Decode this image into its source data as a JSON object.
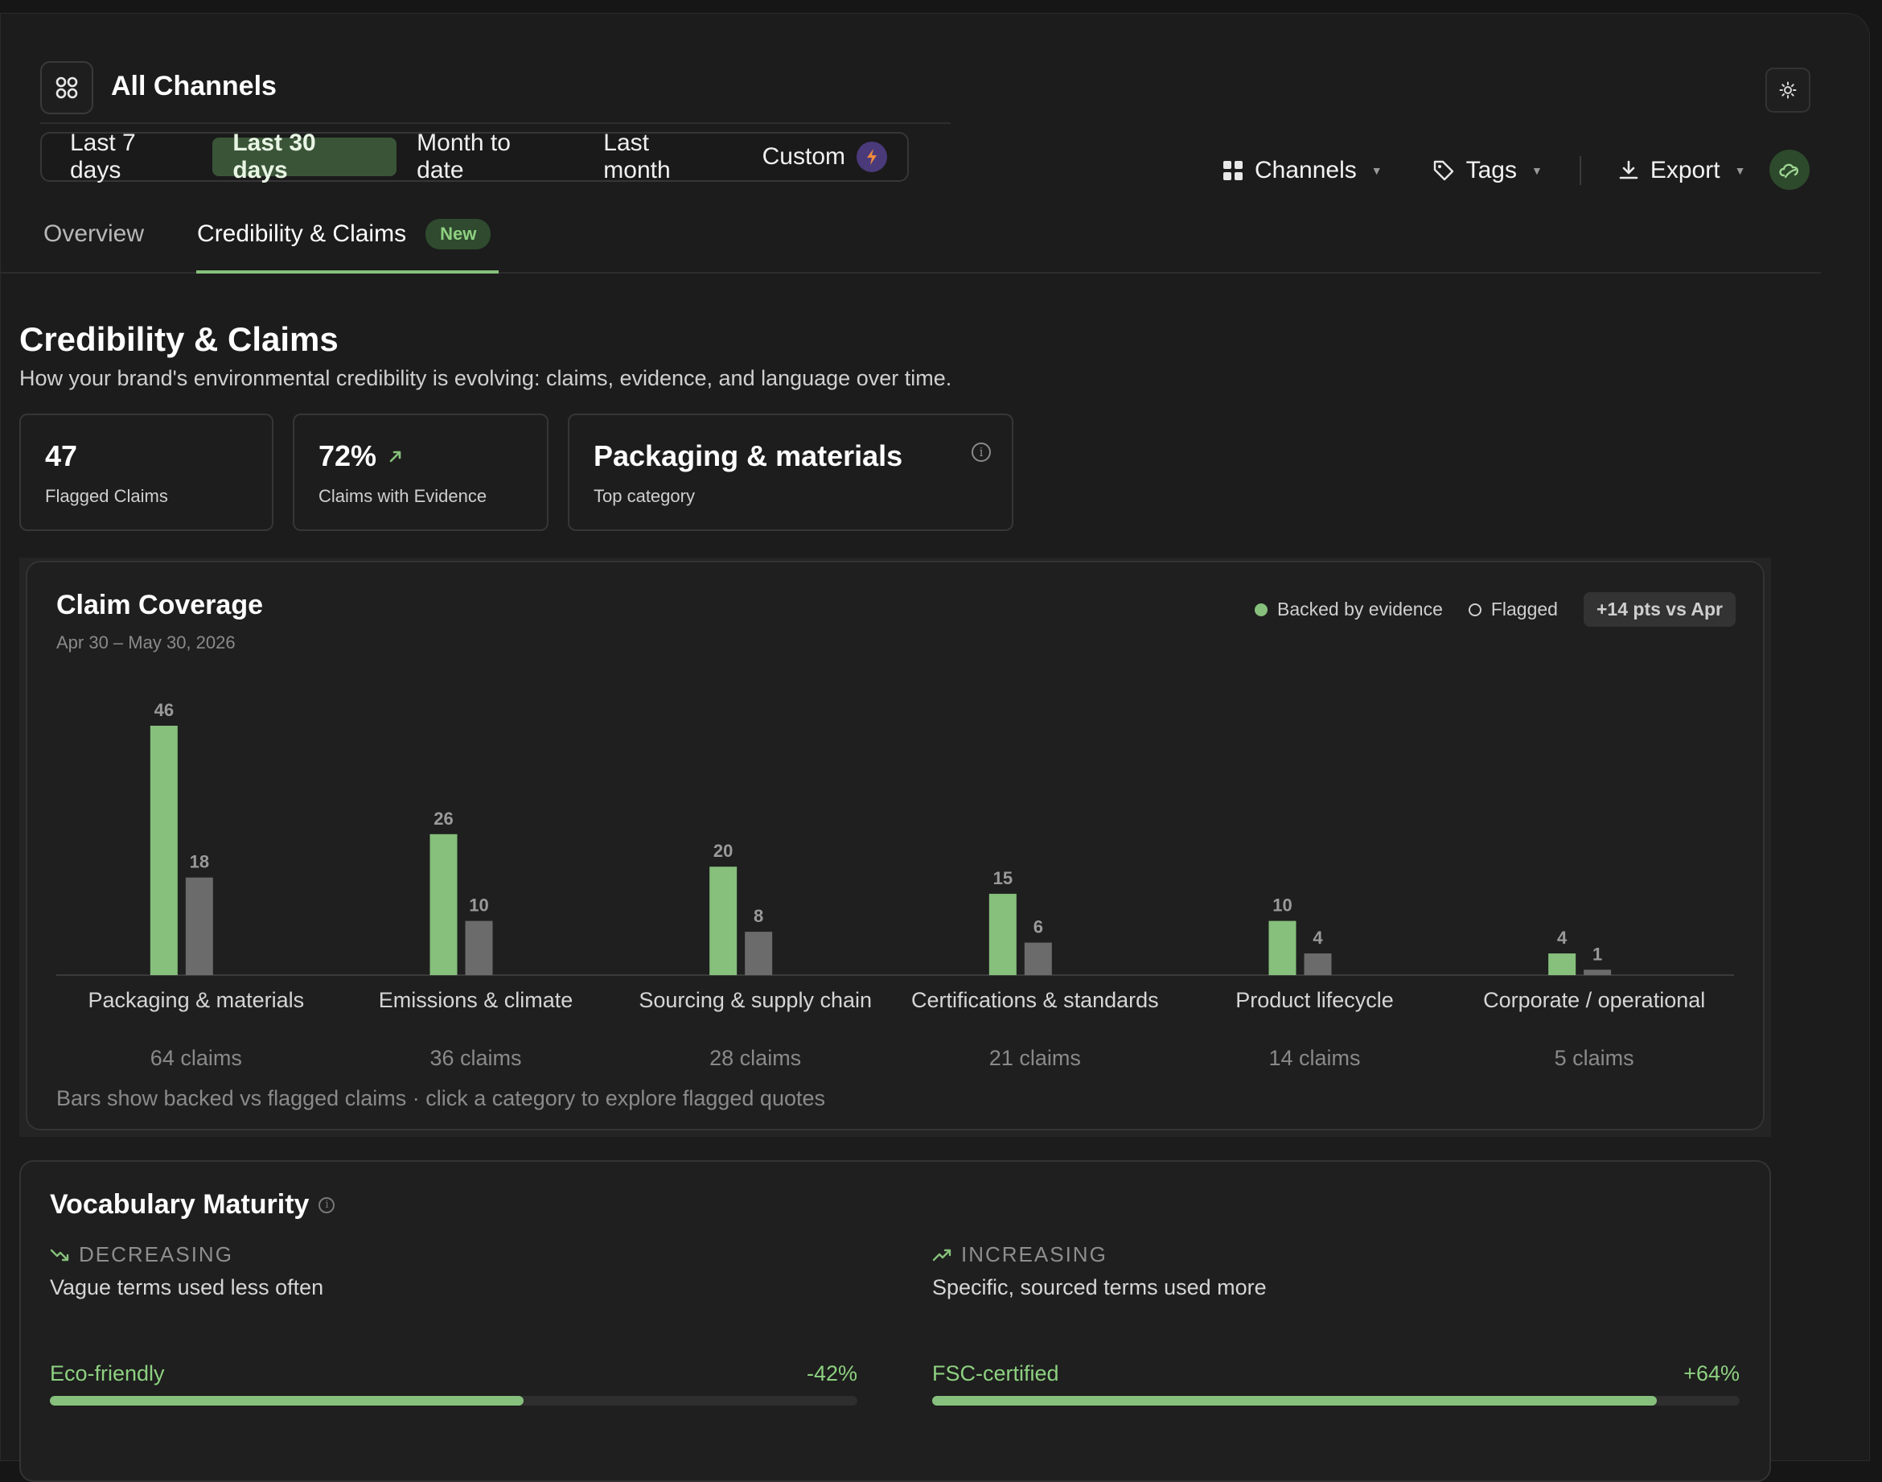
{
  "header": {
    "title": "All Channels",
    "date_tabs": [
      {
        "label": "Last 7 days",
        "active": false
      },
      {
        "label": "Last 30 days",
        "active": true
      },
      {
        "label": "Month to date",
        "active": false
      },
      {
        "label": "Last month",
        "active": false
      },
      {
        "label": "Custom",
        "active": false
      }
    ],
    "tools": {
      "channels": "Channels",
      "tags": "Tags",
      "export": "Export"
    }
  },
  "nav": {
    "tabs": [
      {
        "label": "Overview",
        "active": false
      },
      {
        "label": "Credibility & Claims",
        "active": true,
        "badge": "New"
      }
    ]
  },
  "section": {
    "title": "Credibility & Claims",
    "subtitle": "How your brand's environmental credibility is evolving: claims, evidence, and language over time."
  },
  "stats": [
    {
      "value": "47",
      "label": "Flagged Claims"
    },
    {
      "value": "72%",
      "label": "Claims with Evidence",
      "trend": "up"
    },
    {
      "value": "Packaging & materials",
      "label": "Top category"
    }
  ],
  "coverage": {
    "title": "Claim Coverage",
    "date_range": "Apr 30 – May 30, 2026",
    "legend": {
      "backed": "Backed by evidence",
      "flagged": "Flagged"
    },
    "delta": "+14 pts vs Apr",
    "footnote": "Bars show backed vs flagged claims · click a category to explore flagged quotes",
    "colors": {
      "backed": "#86c07c",
      "flagged": "#6b6b6b",
      "axis": "#3a3a3a"
    }
  },
  "chart_data": {
    "type": "bar",
    "categories": [
      "Packaging & materials",
      "Emissions & climate",
      "Sourcing & supply chain",
      "Certifications & standards",
      "Product lifecycle",
      "Corporate / operational"
    ],
    "category_totals": [
      "64 claims",
      "36 claims",
      "28 claims",
      "21 claims",
      "14 claims",
      "5 claims"
    ],
    "series": [
      {
        "name": "Backed by evidence",
        "values": [
          46,
          26,
          20,
          15,
          10,
          4
        ]
      },
      {
        "name": "Flagged",
        "values": [
          18,
          10,
          8,
          6,
          4,
          1
        ]
      }
    ],
    "ylim": [
      0,
      46
    ],
    "grid": false,
    "legend_position": "top-right"
  },
  "vocabulary": {
    "title": "Vocabulary Maturity",
    "decreasing": {
      "heading": "DECREASING",
      "description": "Vague terms used less often",
      "term": "Eco-friendly",
      "change": "-42%",
      "level": 0.587
    },
    "increasing": {
      "heading": "INCREASING",
      "description": "Specific, sourced terms used more",
      "term": "FSC-certified",
      "change": "+64%",
      "level": 0.897
    }
  }
}
